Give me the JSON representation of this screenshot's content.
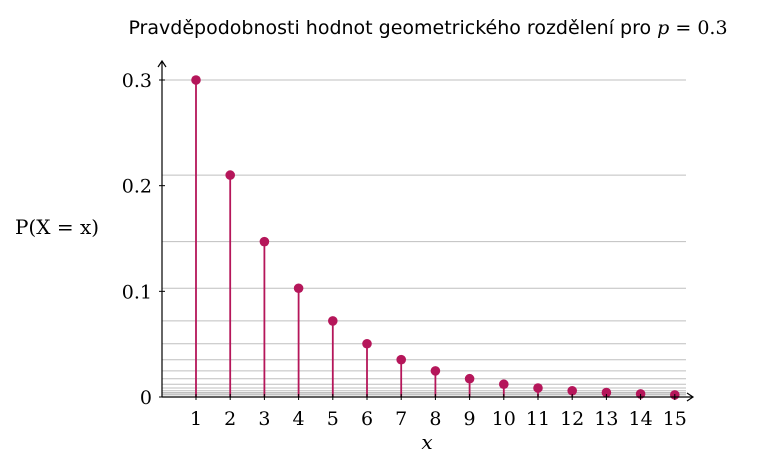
{
  "chart_data": {
    "type": "stem",
    "title": "Pravděpodobnosti hodnot geometrického rozdělení pro p = 0.3",
    "title_text": "Pravděpodobnosti hodnot geometrického rozdělení pro",
    "title_param": "p",
    "title_value": "= 0.3",
    "xlabel": "x",
    "ylabel": "P(X = x)",
    "x": [
      1,
      2,
      3,
      4,
      5,
      6,
      7,
      8,
      9,
      10,
      11,
      12,
      13,
      14,
      15
    ],
    "values": [
      0.3,
      0.21,
      0.147,
      0.1029,
      0.072,
      0.0504,
      0.0353,
      0.0247,
      0.0173,
      0.0121,
      0.0085,
      0.0059,
      0.0042,
      0.0029,
      0.002
    ],
    "y_ticks": [
      0,
      0.1,
      0.2,
      0.3
    ],
    "y_tick_labels": [
      "0",
      "0.1",
      "0.2",
      "0.3"
    ],
    "ylim": [
      0,
      0.3
    ],
    "gridlines_y": [
      0.3,
      0.21,
      0.147,
      0.1029,
      0.072,
      0.0504,
      0.0353,
      0.0247,
      0.0173,
      0.0121,
      0.0085,
      0.0059,
      0.0042,
      0.0029,
      0.002
    ],
    "grid": true,
    "colors": {
      "stem": "#b5165a",
      "grid": "#bfbfbf",
      "axis": "#000000"
    }
  }
}
